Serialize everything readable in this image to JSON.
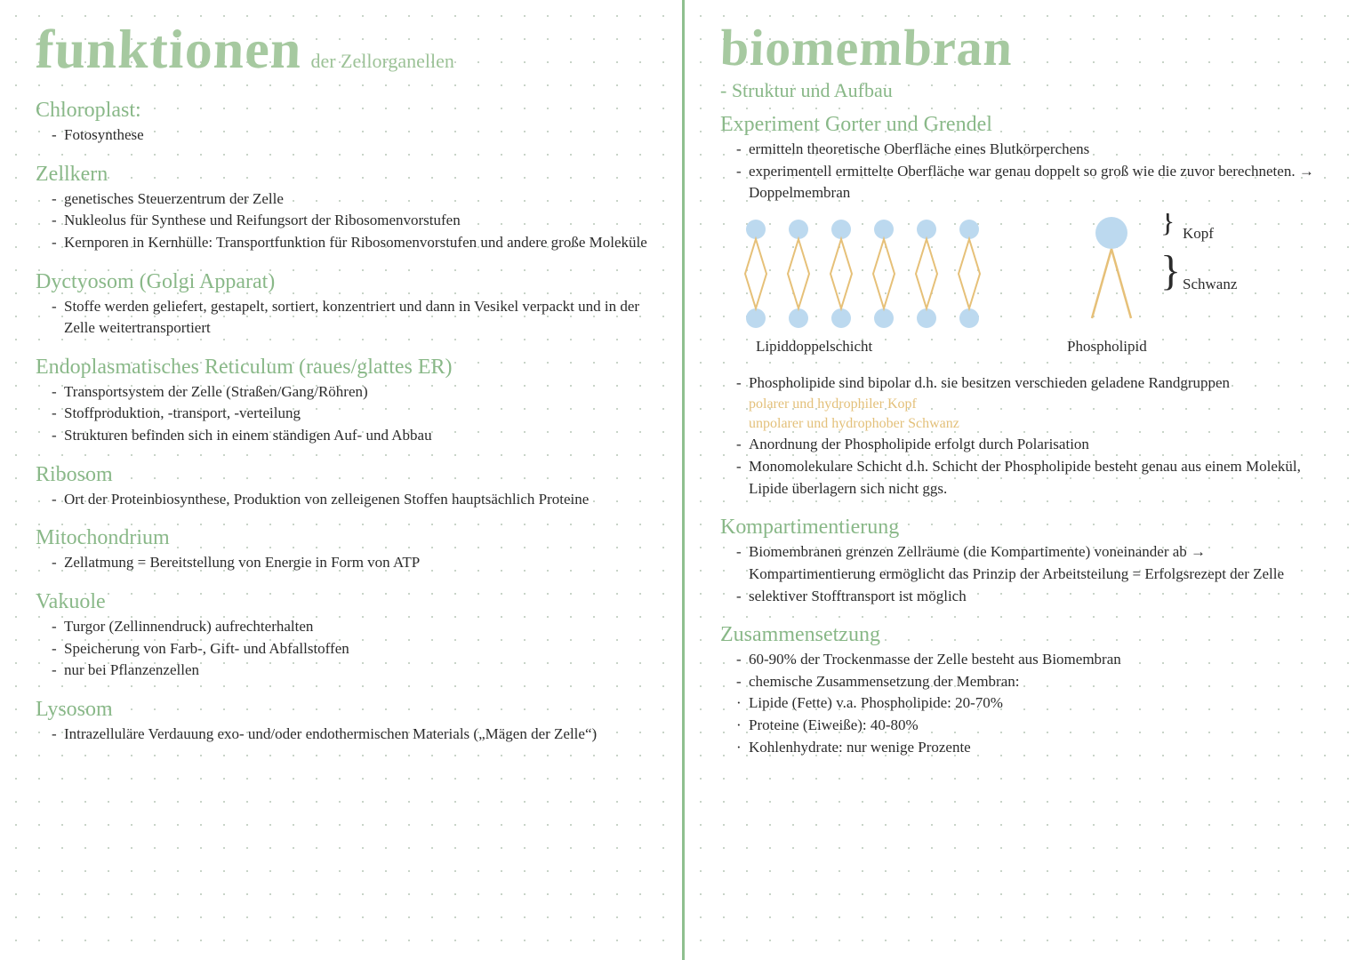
{
  "colors": {
    "accent": "#a6c9a0",
    "heading": "#89b888",
    "text": "#2b2b2b",
    "dot_grid": "#c8d4c8",
    "lipid_head": "#bcd9ef",
    "lipid_tail": "#e6c078",
    "divider": "#8fc08f"
  },
  "left": {
    "title": "funktionen",
    "subtitle": "der Zellorganellen",
    "sections": [
      {
        "h": "Chloroplast:",
        "items": [
          "Fotosynthese"
        ]
      },
      {
        "h": "Zellkern",
        "items": [
          "genetisches Steuerzentrum der Zelle",
          "Nukleolus für Synthese und Reifungsort der Ribosomenvorstufen",
          "Kernporen in Kernhülle: Transportfunktion für Ribosomenvorstufen und andere große Moleküle"
        ]
      },
      {
        "h": "Dyctyosom (Golgi Apparat)",
        "items": [
          "Stoffe werden geliefert, gestapelt, sortiert, konzentriert und dann in Vesikel verpackt und in der Zelle weitertransportiert"
        ]
      },
      {
        "h": "Endoplasmatisches Reticulum (raues/glattes ER)",
        "items": [
          "Transportsystem der Zelle (Straßen/Gang/Röhren)",
          "Stoffproduktion, -transport, -verteilung",
          "Strukturen befinden sich in einem ständigen Auf- und Abbau"
        ]
      },
      {
        "h": "Ribosom",
        "items": [
          "Ort der Proteinbiosynthese, Produktion von zelleigenen Stoffen hauptsächlich Proteine"
        ]
      },
      {
        "h": "Mitochondrium",
        "items": [
          "Zellatmung = Bereitstellung von Energie in Form von ATP"
        ]
      },
      {
        "h": "Vakuole",
        "items": [
          "Turgor (Zellinnendruck) aufrechterhalten",
          "Speicherung von Farb-, Gift- und Abfallstoffen",
          "nur bei Pflanzenzellen"
        ]
      },
      {
        "h": "Lysosom",
        "items": [
          "Intrazelluläre Verdauung exo- und/oder endothermischen Materials („Mägen der Zelle“)"
        ]
      }
    ]
  },
  "right": {
    "title": "biomembran",
    "subtitle": "- Struktur und Aufbau",
    "exp_h": "Experiment Gorter und Grendel",
    "exp_items": [
      "ermitteln theoretische Oberfläche eines Blutkörperchens",
      "experimentell ermittelte Oberfläche war genau doppelt so groß wie die zuvor berechneten. → Doppelmembran"
    ],
    "diagram": {
      "type": "infographic",
      "bilayer_units": 6,
      "head_color": "#bcd9ef",
      "tail_color": "#e6c078",
      "head_radius": 11,
      "tail_stroke": 2,
      "label_left": "Lipiddoppelschicht",
      "label_right": "Phospholipid",
      "label_kopf": "Kopf",
      "label_schwanz": "Schwanz"
    },
    "phos_items": [
      "Phospholipide sind bipolar d.h. sie besitzen verschieden geladene Randgruppen"
    ],
    "accent_lines": [
      "polarer und hydrophiler Kopf",
      "unpolarer und hydrophober Schwanz"
    ],
    "phos_items2": [
      "Anordnung der Phospholipide erfolgt durch Polarisation",
      "Monomolekulare Schicht d.h. Schicht der Phospholipide besteht genau aus einem Molekül, Lipide überlagern sich nicht ggs."
    ],
    "komp_h": "Kompartimentierung",
    "komp_items": [
      "Biomembranen grenzen Zellräume (die Kompartimente) voneinander ab → Kompartimentierung ermöglicht das Prinzip der Arbeitsteilung = Erfolgsrezept der Zelle",
      "selektiver Stofftransport ist möglich"
    ],
    "zus_h": "Zusammensetzung",
    "zus_items": [
      "60-90% der Trockenmasse der Zelle besteht aus Biomembran",
      "chemische Zusammensetzung der Membran:"
    ],
    "zus_sub": [
      "Lipide (Fette) v.a. Phospholipide: 20-70%",
      "Proteine (Eiweiße): 40-80%",
      "Kohlenhydrate: nur wenige Prozente"
    ]
  }
}
